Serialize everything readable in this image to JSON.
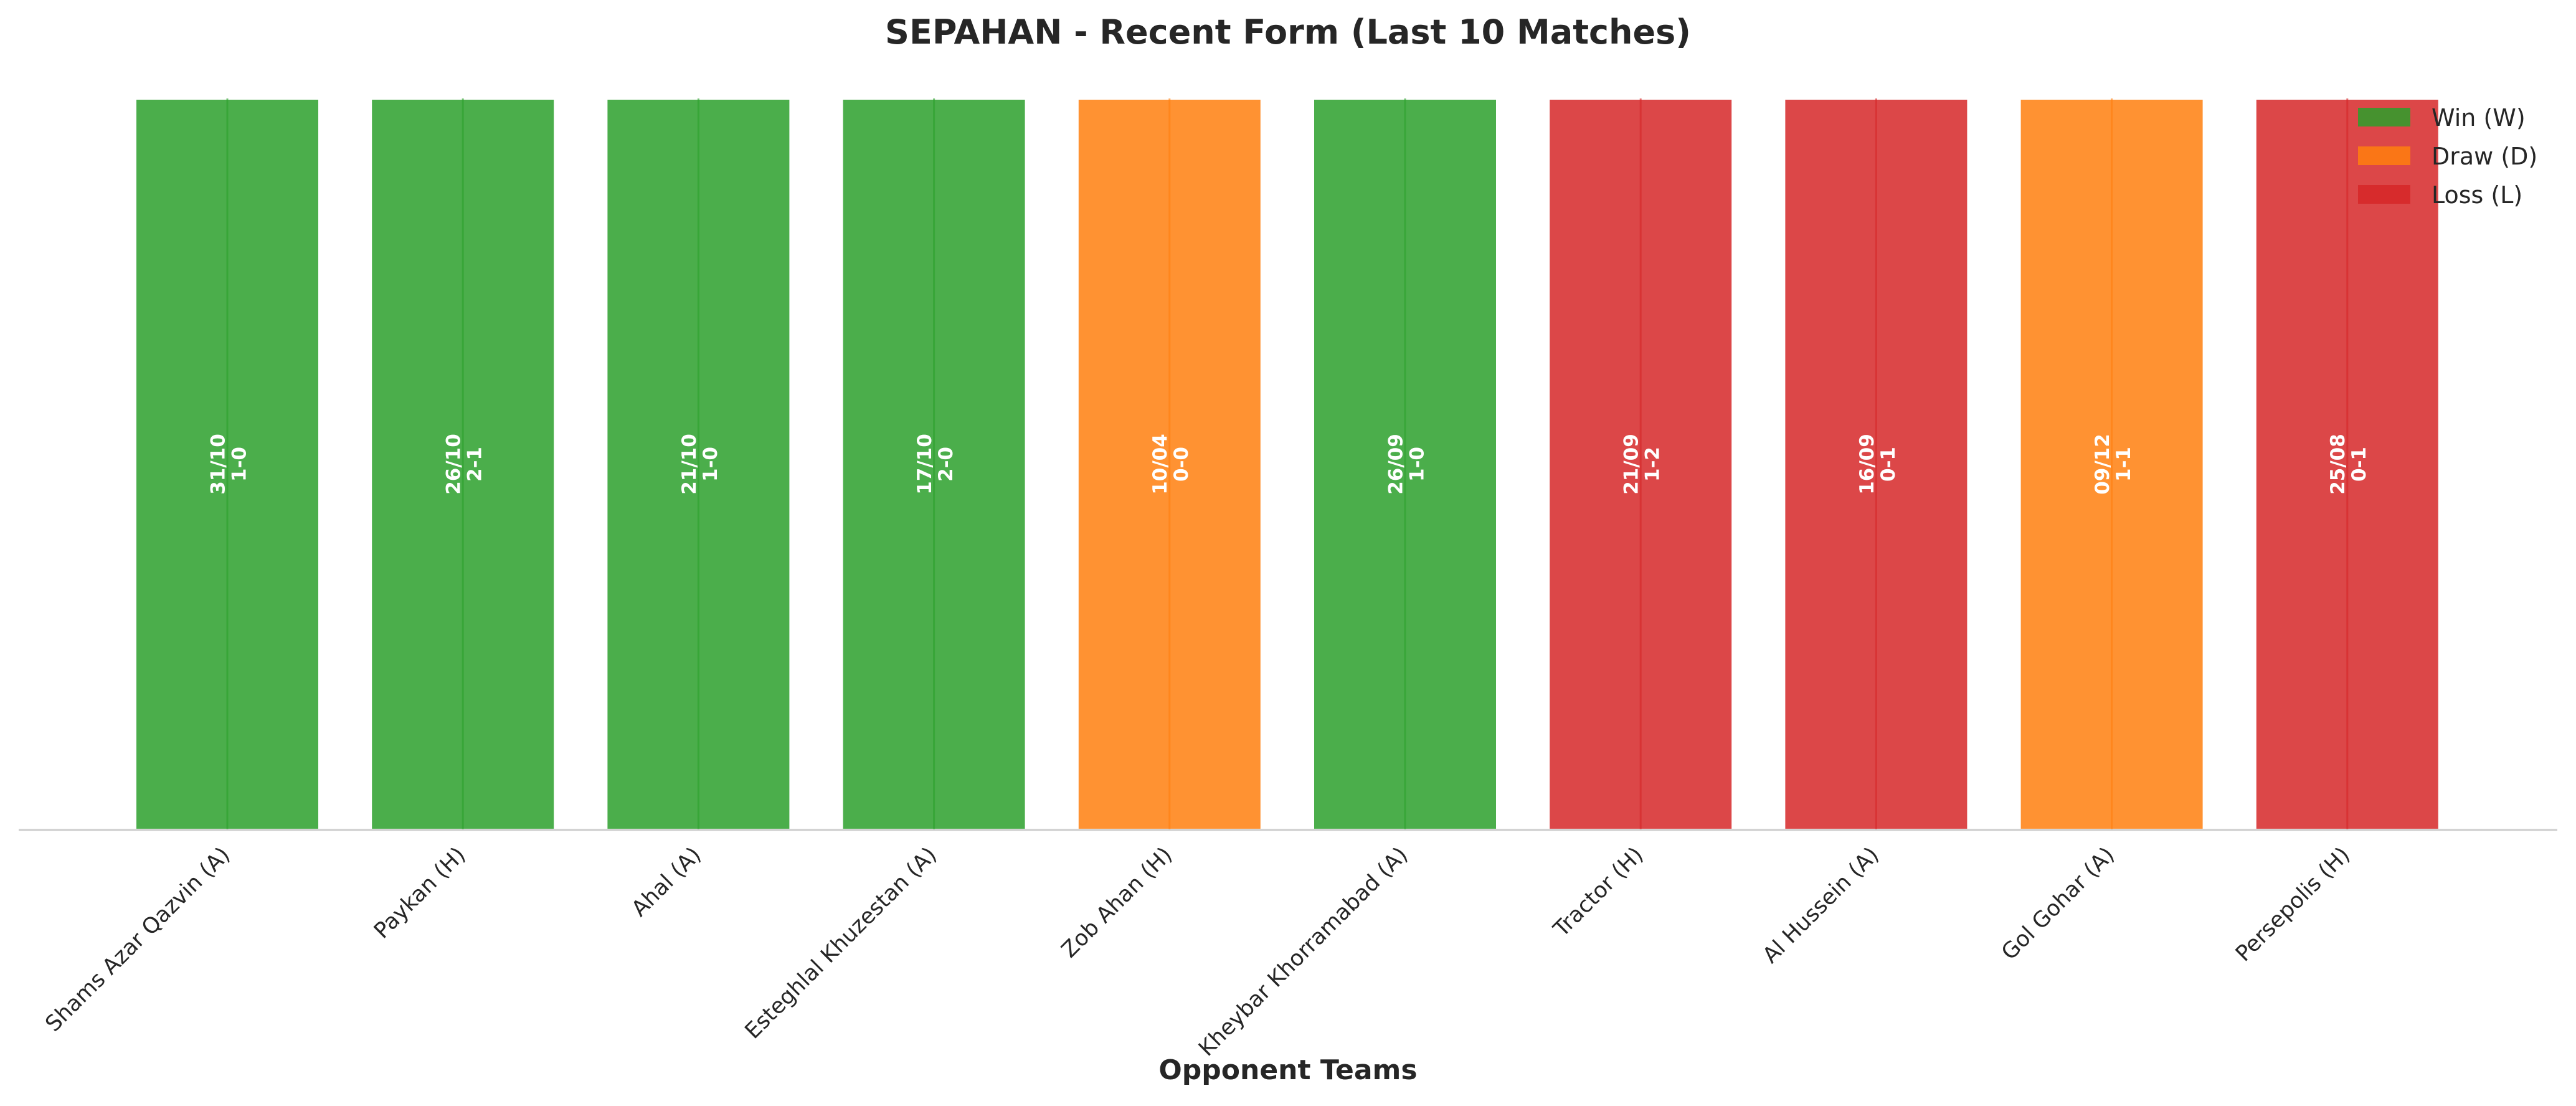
{
  "chart_data": {
    "type": "bar",
    "title": "SEPAHAN - Recent Form (Last 10 Matches)",
    "xlabel": "Opponent Teams",
    "ylabel": "",
    "categories": [
      "Shams Azar Qazvin (A)",
      "Paykan (H)",
      "Ahal (A)",
      "Esteghlal Khuzestan (A)",
      "Zob Ahan (H)",
      "Kheybar Khorramabad (A)",
      "Tractor (H)",
      "Al Hussein (A)",
      "Gol Gohar (A)",
      "Persepolis (H)"
    ],
    "values": [
      1,
      1,
      1,
      1,
      1,
      1,
      1,
      1,
      1,
      1
    ],
    "results": [
      "W",
      "W",
      "W",
      "W",
      "D",
      "W",
      "L",
      "L",
      "D",
      "L"
    ],
    "dates": [
      "31/10",
      "26/10",
      "21/10",
      "17/10",
      "10/04",
      "26/09",
      "21/09",
      "16/09",
      "09/12",
      "25/08"
    ],
    "scores": [
      "1-0",
      "2-1",
      "1-0",
      "2-0",
      "0-0",
      "1-0",
      "1-2",
      "0-1",
      "1-1",
      "0-1"
    ],
    "ylim": [
      0,
      1
    ],
    "grid": false,
    "legend_position": "top-right",
    "legend": [
      {
        "key": "W",
        "label": "Win (W)",
        "color": "#2ca02c"
      },
      {
        "key": "D",
        "label": "Draw (D)",
        "color": "#ff7f0e"
      },
      {
        "key": "L",
        "label": "Loss (L)",
        "color": "#d62728"
      }
    ]
  }
}
